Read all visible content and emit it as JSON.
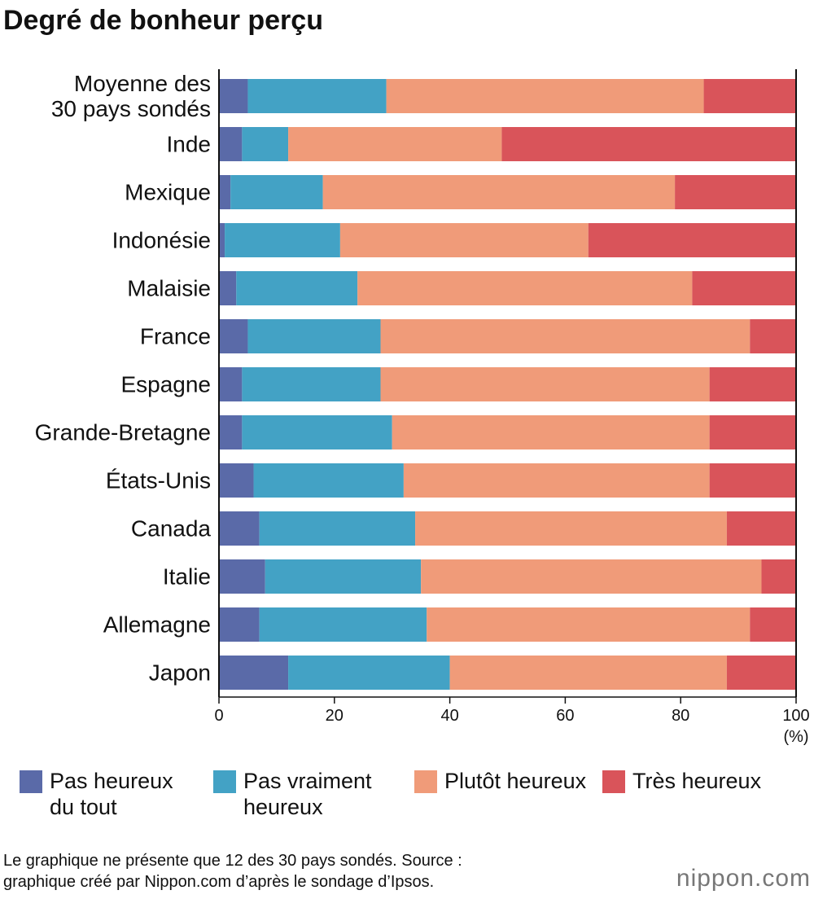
{
  "chart_data": {
    "type": "stacked-barh",
    "title": "Degré de bonheur perçu",
    "categories": [
      "Moyenne des\n30 pays sondés",
      "Inde",
      "Mexique",
      "Indonésie",
      "Malaisie",
      "France",
      "Espagne",
      "Grande-Bretagne",
      "États-Unis",
      "Canada",
      "Italie",
      "Allemagne",
      "Japon"
    ],
    "series": [
      {
        "name": "Pas heureux\ndu tout",
        "color": "#5a6aa8",
        "values": [
          5,
          4,
          2,
          1,
          3,
          5,
          4,
          4,
          6,
          7,
          8,
          7,
          12
        ]
      },
      {
        "name": "Pas vraiment\nheureux",
        "color": "#43a2c5",
        "values": [
          24,
          8,
          16,
          20,
          21,
          23,
          24,
          26,
          26,
          27,
          27,
          29,
          28
        ]
      },
      {
        "name": "Plutôt heureux",
        "color": "#f09b79",
        "values": [
          55,
          37,
          61,
          43,
          58,
          64,
          57,
          55,
          53,
          54,
          59,
          56,
          48
        ]
      },
      {
        "name": "Très heureux",
        "color": "#d9545a",
        "values": [
          16,
          51,
          21,
          36,
          18,
          8,
          15,
          15,
          15,
          12,
          6,
          8,
          12
        ]
      }
    ],
    "xlim": [
      0,
      100
    ],
    "xticks": [
      0,
      20,
      40,
      60,
      80,
      100
    ],
    "x_unit": "(%)",
    "footnote": "Le graphique ne présente que 12 des 30 pays sondés. Source :\ngraphique créé par Nippon.com d’après le sondage d’Ipsos.",
    "logo": "nippon.com"
  }
}
